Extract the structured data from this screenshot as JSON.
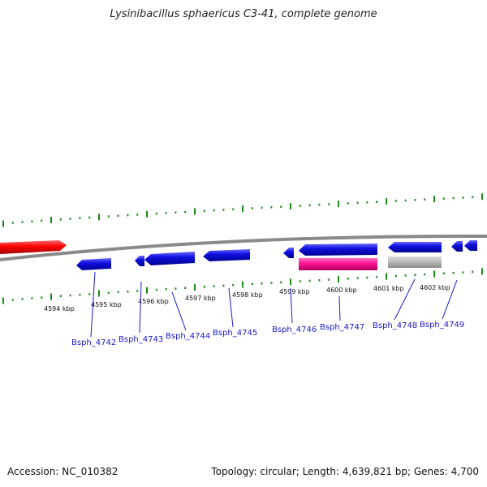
{
  "title": "Lysinibacillus sphaericus C3-41, complete genome",
  "footer": {
    "accession": "Accession: NC_010382",
    "summary": "Topology: circular; Length: 4,639,821 bp; Genes: 4,700"
  },
  "ruler_labels": [
    "4594 kbp",
    "4595 kbp",
    "4596 kbp",
    "4597 kbp",
    "4598 kbp",
    "4599 kbp",
    "4600 kbp",
    "4601 kbp",
    "4602 kbp"
  ],
  "genes": [
    {
      "label": "Bsph_4742"
    },
    {
      "label": "Bsph_4743"
    },
    {
      "label": "Bsph_4744"
    },
    {
      "label": "Bsph_4745"
    },
    {
      "label": "Bsph_4746"
    },
    {
      "label": "Bsph_4747"
    },
    {
      "label": "Bsph_4748"
    },
    {
      "label": "Bsph_4749"
    }
  ],
  "colors": {
    "cds": "#1010e0",
    "highlight": "#ff0000",
    "rna": "#ff1493",
    "pseudo": "#b8b8b8",
    "backbone": "#8a8a8a",
    "ticks": "#1a8a1a",
    "gene_label": "#1a1acc"
  }
}
